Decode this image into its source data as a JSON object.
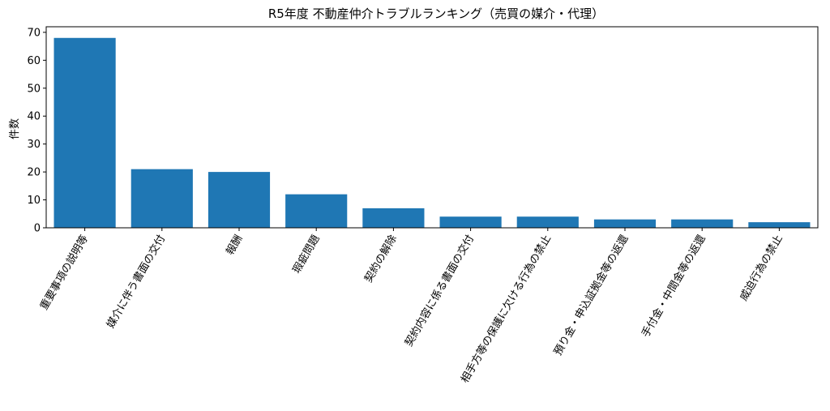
{
  "chart_data": {
    "type": "bar",
    "title": "R5年度 不動産仲介トラブルランキング（売買の媒介・代理）",
    "xlabel": "",
    "ylabel": "件数",
    "ylim": [
      0,
      72
    ],
    "yticks": [
      0,
      10,
      20,
      30,
      40,
      50,
      60,
      70
    ],
    "grid": false,
    "legend": "none",
    "bar_color": "#1f77b4",
    "categories": [
      "重要事項の説明等",
      "媒介に伴う書面の交付",
      "報酬",
      "瑕疵問題",
      "契約の解除",
      "契約内容に係る書面の交付",
      "相手方等の保護に欠ける行為の禁止",
      "預り金・申込証拠金等の返還",
      "手付金・中間金等の返還",
      "威迫行為の禁止"
    ],
    "values": [
      68,
      21,
      20,
      12,
      7,
      4,
      4,
      3,
      3,
      2
    ]
  }
}
